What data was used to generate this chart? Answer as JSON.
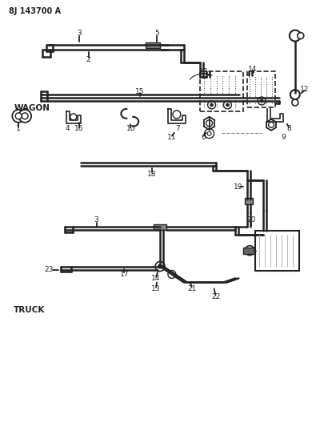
{
  "title": "8J 143700 A",
  "bg_color": "#ffffff",
  "line_color": "#222222",
  "wagon_label": "WAGON",
  "truck_label": "TRUCK",
  "figsize": [
    4.0,
    5.33
  ],
  "dpi": 100
}
